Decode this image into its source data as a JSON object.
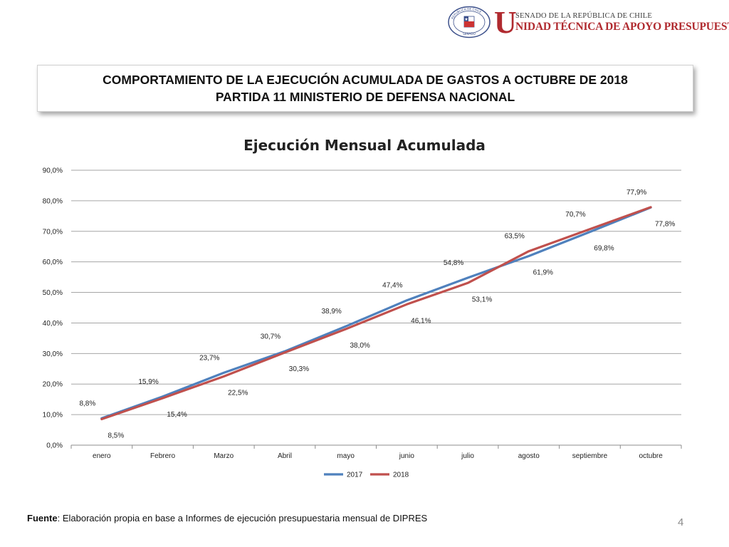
{
  "header": {
    "seal_top_text": "REPUBLICA DE CHILE",
    "seal_bottom_text": "SENADO",
    "logo_initial": "U",
    "logo_top_text": "SENADO DE LA REPÚBLICA DE CHILE",
    "logo_main_text": "NIDAD TÉCNICA DE APOYO PRESUPUESTARIO"
  },
  "title": {
    "line1": "COMPORTAMIENTO DE LA EJECUCIÓN ACUMULADA DE GASTOS A OCTUBRE DE 2018",
    "line2": "PARTIDA 11 MINISTERIO DE DEFENSA NACIONAL"
  },
  "chart_data": {
    "type": "line",
    "title": "Ejecución Mensual Acumulada",
    "categories": [
      "enero",
      "Febrero",
      "Marzo",
      "Abril",
      "mayo",
      "junio",
      "julio",
      "agosto",
      "septiembre",
      "octubre"
    ],
    "series": [
      {
        "name": "2017",
        "color": "#4f81bd",
        "values": [
          8.8,
          15.9,
          23.7,
          30.7,
          38.9,
          47.4,
          54.8,
          61.9,
          69.8,
          77.8
        ],
        "labels": [
          "8,8%",
          "15,9%",
          "23,7%",
          "30,7%",
          "38,9%",
          "47,4%",
          "54,8%",
          "61,9%",
          "69,8%",
          "77,8%"
        ]
      },
      {
        "name": "2018",
        "color": "#c0504d",
        "values": [
          8.5,
          15.4,
          22.5,
          30.3,
          38.0,
          46.1,
          53.1,
          63.5,
          70.7,
          77.9
        ],
        "labels": [
          "8,5%",
          "15,4%",
          "22,5%",
          "30,3%",
          "38,0%",
          "46,1%",
          "53,1%",
          "63,5%",
          "70,7%",
          "77,9%"
        ]
      }
    ],
    "ylim": [
      0,
      90
    ],
    "yticks": [
      "0,0%",
      "10,0%",
      "20,0%",
      "30,0%",
      "40,0%",
      "50,0%",
      "60,0%",
      "70,0%",
      "80,0%",
      "90,0%"
    ],
    "grid": true,
    "legend_position": "bottom"
  },
  "footer": {
    "source_label": "Fuente",
    "source_text": ": Elaboración propia en base  a Informes de ejecución presupuestaria mensual de DIPRES"
  },
  "page_number": "4"
}
